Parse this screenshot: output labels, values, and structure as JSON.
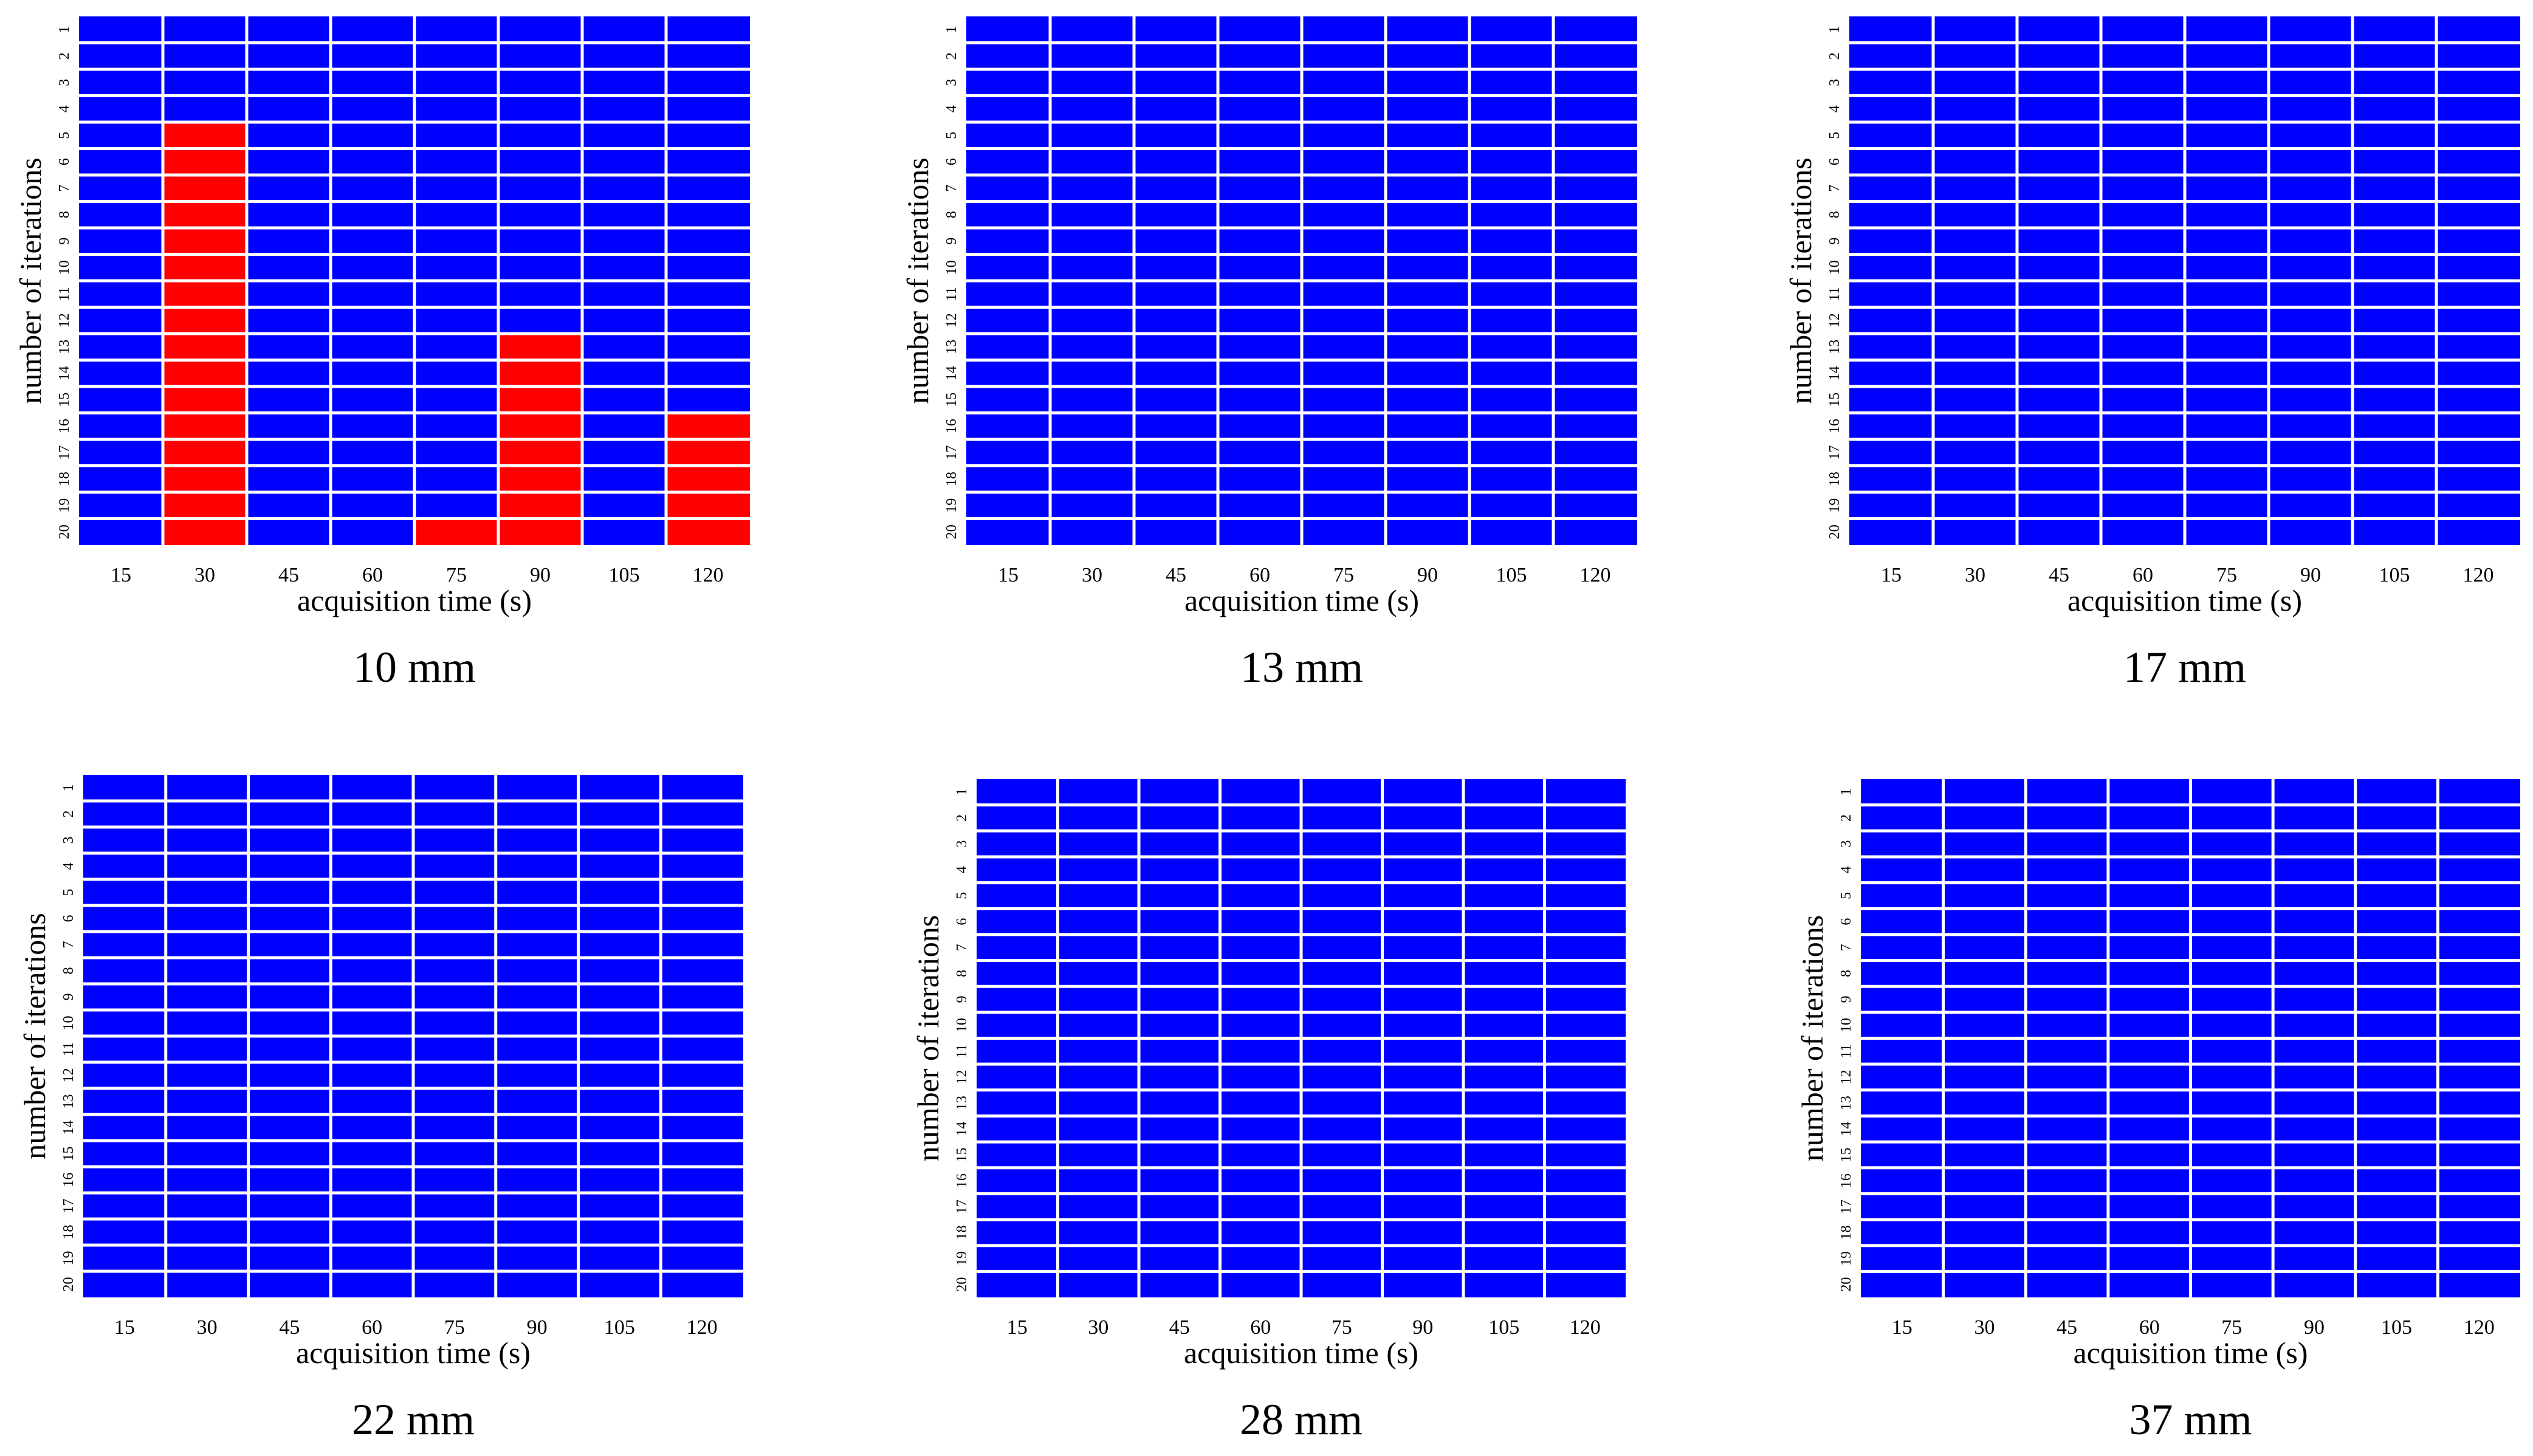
{
  "colors": {
    "negative": "#0000FF",
    "positive": "#FF0000",
    "grid": "#FFFFFF"
  },
  "chart_data": [
    {
      "type": "heatmap",
      "title": "10 mm",
      "xlabel": "acquisition time (s)",
      "ylabel": "number of iterations",
      "x_tick_labels": [
        "15",
        "30",
        "45",
        "60",
        "75",
        "90",
        "105",
        "120"
      ],
      "y_tick_labels": [
        "1",
        "2",
        "3",
        "4",
        "5",
        "6",
        "7",
        "8",
        "9",
        "10",
        "11",
        "12",
        "13",
        "14",
        "15",
        "16",
        "17",
        "18",
        "19",
        "20"
      ],
      "legend": "none",
      "red_cells_by_column": [
        [],
        [
          5,
          6,
          7,
          8,
          9,
          10,
          11,
          12,
          13,
          14,
          15,
          16,
          17,
          18,
          19,
          20
        ],
        [],
        [],
        [
          20
        ],
        [
          13,
          14,
          15,
          16,
          17,
          18,
          19,
          20
        ],
        [],
        [
          16,
          17,
          18,
          19,
          20
        ]
      ]
    },
    {
      "type": "heatmap",
      "title": "13 mm",
      "xlabel": "acquisition time (s)",
      "ylabel": "number of iterations",
      "x_tick_labels": [
        "15",
        "30",
        "45",
        "60",
        "75",
        "90",
        "105",
        "120"
      ],
      "y_tick_labels": [
        "1",
        "2",
        "3",
        "4",
        "5",
        "6",
        "7",
        "8",
        "9",
        "10",
        "11",
        "12",
        "13",
        "14",
        "15",
        "16",
        "17",
        "18",
        "19",
        "20"
      ],
      "legend": "none",
      "red_cells_by_column": [
        [],
        [],
        [],
        [],
        [],
        [],
        [],
        []
      ]
    },
    {
      "type": "heatmap",
      "title": "17 mm",
      "xlabel": "acquisition time (s)",
      "ylabel": "number of iterations",
      "x_tick_labels": [
        "15",
        "30",
        "45",
        "60",
        "75",
        "90",
        "105",
        "120"
      ],
      "y_tick_labels": [
        "1",
        "2",
        "3",
        "4",
        "5",
        "6",
        "7",
        "8",
        "9",
        "10",
        "11",
        "12",
        "13",
        "14",
        "15",
        "16",
        "17",
        "18",
        "19",
        "20"
      ],
      "legend": "none",
      "red_cells_by_column": [
        [],
        [],
        [],
        [],
        [],
        [],
        [],
        []
      ]
    },
    {
      "type": "heatmap",
      "title": "22 mm",
      "xlabel": "acquisition time (s)",
      "ylabel": "number of iterations",
      "x_tick_labels": [
        "15",
        "30",
        "45",
        "60",
        "75",
        "90",
        "105",
        "120"
      ],
      "y_tick_labels": [
        "1",
        "2",
        "3",
        "4",
        "5",
        "6",
        "7",
        "8",
        "9",
        "10",
        "11",
        "12",
        "13",
        "14",
        "15",
        "16",
        "17",
        "18",
        "19",
        "20"
      ],
      "legend": "none",
      "red_cells_by_column": [
        [],
        [],
        [],
        [],
        [],
        [],
        [],
        []
      ]
    },
    {
      "type": "heatmap",
      "title": "28 mm",
      "xlabel": "acquisition time (s)",
      "ylabel": "number of iterations",
      "x_tick_labels": [
        "15",
        "30",
        "45",
        "60",
        "75",
        "90",
        "105",
        "120"
      ],
      "y_tick_labels": [
        "1",
        "2",
        "3",
        "4",
        "5",
        "6",
        "7",
        "8",
        "9",
        "10",
        "11",
        "12",
        "13",
        "14",
        "15",
        "16",
        "17",
        "18",
        "19",
        "20"
      ],
      "legend": "none",
      "red_cells_by_column": [
        [],
        [],
        [],
        [],
        [],
        [],
        [],
        []
      ]
    },
    {
      "type": "heatmap",
      "title": "37 mm",
      "xlabel": "acquisition time (s)",
      "ylabel": "number of iterations",
      "x_tick_labels": [
        "15",
        "30",
        "45",
        "60",
        "75",
        "90",
        "105",
        "120"
      ],
      "y_tick_labels": [
        "1",
        "2",
        "3",
        "4",
        "5",
        "6",
        "7",
        "8",
        "9",
        "10",
        "11",
        "12",
        "13",
        "14",
        "15",
        "16",
        "17",
        "18",
        "19",
        "20"
      ],
      "legend": "none",
      "red_cells_by_column": [
        [],
        [],
        [],
        [],
        [],
        [],
        [],
        []
      ]
    }
  ]
}
